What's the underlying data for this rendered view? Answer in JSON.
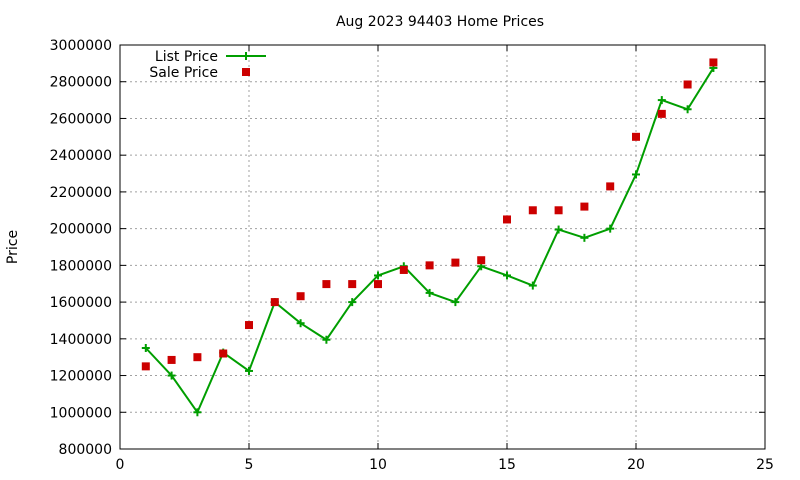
{
  "chart_data": {
    "type": "line",
    "title": "Aug 2023 94403 Home Prices",
    "xlabel": "",
    "ylabel": "Price",
    "xlim": [
      0,
      25
    ],
    "ylim": [
      800000,
      3000000
    ],
    "xticks": [
      0,
      5,
      10,
      15,
      20,
      25
    ],
    "yticks": [
      800000,
      1000000,
      1200000,
      1400000,
      1600000,
      1800000,
      2000000,
      2200000,
      2400000,
      2600000,
      2800000,
      3000000
    ],
    "grid": true,
    "legend_position": "top-left",
    "series": [
      {
        "name": "List Price",
        "style": "line-plus",
        "color": "#009e00",
        "x": [
          1,
          2,
          3,
          4,
          5,
          6,
          7,
          8,
          9,
          10,
          11,
          12,
          13,
          14,
          15,
          16,
          17,
          18,
          19,
          20,
          21,
          22,
          23
        ],
        "y": [
          1350000,
          1200000,
          1000000,
          1325000,
          1225000,
          1600000,
          1485000,
          1395000,
          1600000,
          1745000,
          1795000,
          1650000,
          1600000,
          1795000,
          1745000,
          1690000,
          1995000,
          1950000,
          2000000,
          2295000,
          2700000,
          2650000,
          2875000
        ]
      },
      {
        "name": "Sale Price",
        "style": "square",
        "color": "#cc0000",
        "x": [
          1,
          2,
          3,
          4,
          5,
          6,
          7,
          8,
          9,
          10,
          11,
          12,
          13,
          14,
          15,
          16,
          17,
          18,
          19,
          20,
          21,
          22,
          23
        ],
        "y": [
          1250000,
          1285000,
          1300000,
          1320000,
          1475000,
          1600000,
          1632000,
          1698000,
          1698000,
          1698000,
          1775000,
          1800000,
          1815000,
          1828000,
          2050000,
          2100000,
          2100000,
          2120000,
          2230000,
          2500000,
          2625000,
          2785000,
          2905000
        ]
      }
    ]
  }
}
